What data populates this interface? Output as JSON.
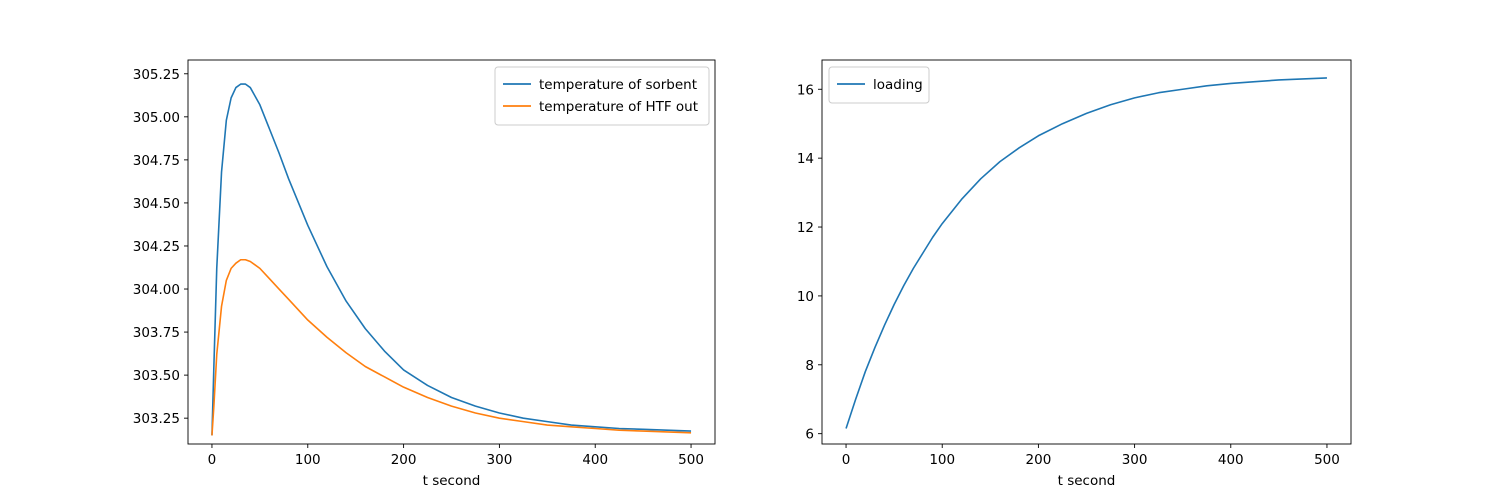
{
  "chart_data": [
    {
      "type": "line",
      "title": "",
      "xlabel": "t second",
      "ylabel": "",
      "xlim": [
        -25,
        525
      ],
      "ylim": [
        303.1,
        305.33
      ],
      "xticks": [
        0,
        100,
        200,
        300,
        400,
        500
      ],
      "xtick_labels": [
        "0",
        "100",
        "200",
        "300",
        "400",
        "500"
      ],
      "yticks": [
        303.25,
        303.5,
        303.75,
        304.0,
        304.25,
        304.5,
        304.75,
        305.0,
        305.25
      ],
      "ytick_labels": [
        "303.25",
        "303.50",
        "303.75",
        "304.00",
        "304.25",
        "304.50",
        "304.75",
        "305.00",
        "305.25"
      ],
      "grid": false,
      "legend_position": "upper right",
      "series": [
        {
          "name": "temperature of sorbent",
          "color": "#1f77b4",
          "x": [
            0,
            2,
            5,
            10,
            15,
            20,
            25,
            30,
            35,
            40,
            50,
            60,
            70,
            80,
            100,
            120,
            140,
            160,
            180,
            200,
            225,
            250,
            275,
            300,
            325,
            350,
            375,
            400,
            425,
            450,
            475,
            500
          ],
          "y": [
            303.15,
            303.55,
            304.12,
            304.68,
            304.98,
            305.11,
            305.17,
            305.19,
            305.19,
            305.17,
            305.07,
            304.93,
            304.79,
            304.64,
            304.37,
            304.13,
            303.93,
            303.77,
            303.64,
            303.53,
            303.44,
            303.37,
            303.32,
            303.28,
            303.25,
            303.23,
            303.21,
            303.2,
            303.19,
            303.185,
            303.18,
            303.175
          ]
        },
        {
          "name": "temperature of HTF out",
          "color": "#ff7f0e",
          "x": [
            0,
            2,
            5,
            10,
            15,
            20,
            25,
            30,
            35,
            40,
            50,
            60,
            70,
            80,
            100,
            120,
            140,
            160,
            180,
            200,
            225,
            250,
            275,
            300,
            325,
            350,
            375,
            400,
            425,
            450,
            475,
            500
          ],
          "y": [
            303.15,
            303.32,
            303.62,
            303.9,
            304.05,
            304.12,
            304.15,
            304.17,
            304.17,
            304.16,
            304.12,
            304.06,
            304.0,
            303.94,
            303.82,
            303.72,
            303.63,
            303.55,
            303.49,
            303.43,
            303.37,
            303.32,
            303.28,
            303.25,
            303.23,
            303.21,
            303.2,
            303.19,
            303.18,
            303.175,
            303.17,
            303.165
          ]
        }
      ]
    },
    {
      "type": "line",
      "title": "",
      "xlabel": "t second",
      "ylabel": "",
      "xlim": [
        -25,
        525
      ],
      "ylim": [
        5.7,
        16.85
      ],
      "xticks": [
        0,
        100,
        200,
        300,
        400,
        500
      ],
      "xtick_labels": [
        "0",
        "100",
        "200",
        "300",
        "400",
        "500"
      ],
      "yticks": [
        6,
        8,
        10,
        12,
        14,
        16
      ],
      "ytick_labels": [
        "6",
        "8",
        "10",
        "12",
        "14",
        "16"
      ],
      "grid": false,
      "legend_position": "upper left",
      "series": [
        {
          "name": "loading",
          "color": "#1f77b4",
          "x": [
            0,
            10,
            20,
            30,
            40,
            50,
            60,
            70,
            80,
            90,
            100,
            120,
            140,
            160,
            180,
            200,
            225,
            250,
            275,
            300,
            325,
            350,
            375,
            400,
            425,
            450,
            475,
            500
          ],
          "y": [
            6.15,
            7.0,
            7.8,
            8.5,
            9.15,
            9.75,
            10.3,
            10.8,
            11.25,
            11.7,
            12.1,
            12.8,
            13.4,
            13.9,
            14.3,
            14.65,
            15.0,
            15.3,
            15.55,
            15.75,
            15.9,
            16.0,
            16.1,
            16.17,
            16.22,
            16.27,
            16.3,
            16.33
          ]
        }
      ]
    }
  ]
}
